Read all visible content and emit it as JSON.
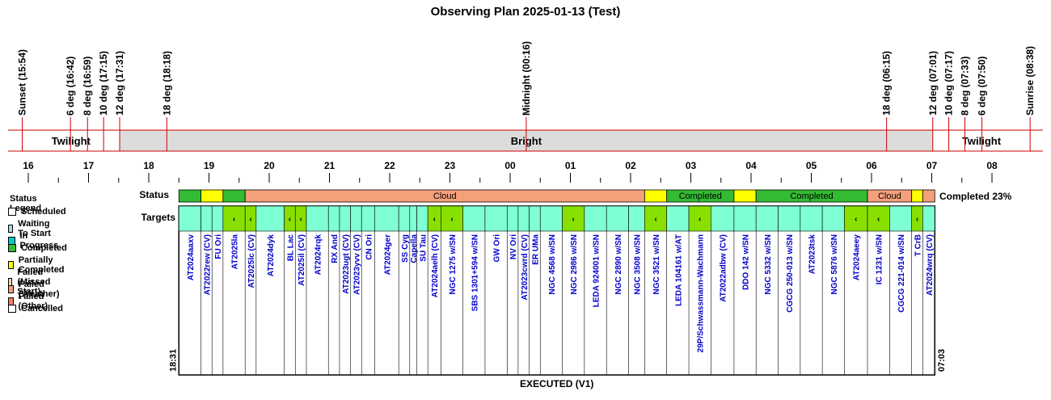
{
  "title": "Observing Plan 2025-01-13 (Test)",
  "twilight_markers": [
    {
      "label": "Sunset (15:54)",
      "hour": 15.9
    },
    {
      "label": "6 deg (16:42)",
      "hour": 16.7
    },
    {
      "label": "8 deg (16:59)",
      "hour": 16.983
    },
    {
      "label": "10 deg (17:15)",
      "hour": 17.25
    },
    {
      "label": "12 deg (17:31)",
      "hour": 17.517
    },
    {
      "label": "18 deg (18:18)",
      "hour": 18.3
    },
    {
      "label": "Midnight (00:16)",
      "hour": 24.267
    },
    {
      "label": "18 deg (06:15)",
      "hour": 30.25
    },
    {
      "label": "12 deg (07:01)",
      "hour": 31.017
    },
    {
      "label": "10 deg (07:17)",
      "hour": 31.283
    },
    {
      "label": "8 deg (07:33)",
      "hour": 31.55
    },
    {
      "label": "6 deg (07:50)",
      "hour": 31.833
    },
    {
      "label": "Sunrise (08:38)",
      "hour": 32.633
    }
  ],
  "sky_bands": [
    {
      "label": "Twilight",
      "start": 15.9,
      "end": 17.517,
      "color": "#ffffff"
    },
    {
      "label": "Bright",
      "start": 17.517,
      "end": 31.017,
      "color": "#dcdcdc"
    },
    {
      "label": "Twilight",
      "start": 31.017,
      "end": 32.633,
      "color": "#ffffff"
    }
  ],
  "hour_ticks": [
    "16",
    "17",
    "18",
    "19",
    "20",
    "21",
    "22",
    "23",
    "00",
    "01",
    "02",
    "03",
    "04",
    "05",
    "06",
    "07",
    "08"
  ],
  "status_label": "Status",
  "targets_label": "Targets",
  "status_segments": [
    {
      "label": "",
      "start": 18.5,
      "end": 18.867,
      "color": "#33bb33"
    },
    {
      "label": "",
      "start": 18.867,
      "end": 19.233,
      "color": "#ffff00"
    },
    {
      "label": "",
      "start": 19.233,
      "end": 19.6,
      "color": "#33bb33"
    },
    {
      "label": "Cloud",
      "start": 19.6,
      "end": 26.233,
      "color": "#f4a07a"
    },
    {
      "label": "",
      "start": 26.233,
      "end": 26.6,
      "color": "#ffff00"
    },
    {
      "label": "Completed",
      "start": 26.6,
      "end": 27.717,
      "color": "#33bb33"
    },
    {
      "label": "",
      "start": 27.717,
      "end": 28.083,
      "color": "#ffff00"
    },
    {
      "label": "Completed",
      "start": 28.083,
      "end": 29.933,
      "color": "#33bb33"
    },
    {
      "label": "Cloud",
      "start": 29.933,
      "end": 30.667,
      "color": "#f4a07a"
    },
    {
      "label": "",
      "start": 30.667,
      "end": 30.85,
      "color": "#ffff00"
    },
    {
      "label": "",
      "start": 30.85,
      "end": 31.05,
      "color": "#f4a07a"
    }
  ],
  "completed_summary": "Completed 23%",
  "targets": [
    {
      "name": "AT2024aaxv",
      "start": 18.5,
      "end": 18.867,
      "mark": ""
    },
    {
      "name": "AT2022rew (CV)",
      "start": 18.867,
      "end": 19.05,
      "mark": ""
    },
    {
      "name": "FU Ori",
      "start": 19.05,
      "end": 19.233,
      "mark": ""
    },
    {
      "name": "AT2025la",
      "start": 19.233,
      "end": 19.6,
      "mark": "‹"
    },
    {
      "name": "AT2025lc (CV)",
      "start": 19.6,
      "end": 19.783,
      "mark": "‹"
    },
    {
      "name": "AT2024dyk",
      "start": 19.783,
      "end": 20.25,
      "mark": ""
    },
    {
      "name": "BL Lac",
      "start": 20.25,
      "end": 20.433,
      "mark": "‹"
    },
    {
      "name": "AT2025il (CV)",
      "start": 20.433,
      "end": 20.617,
      "mark": "‹"
    },
    {
      "name": "AT2024rqk",
      "start": 20.617,
      "end": 20.983,
      "mark": ""
    },
    {
      "name": "RX And",
      "start": 20.983,
      "end": 21.167,
      "mark": ""
    },
    {
      "name": "AT2023ugt (CV)",
      "start": 21.167,
      "end": 21.35,
      "mark": ""
    },
    {
      "name": "AT2023yvv (CV)",
      "start": 21.35,
      "end": 21.533,
      "mark": ""
    },
    {
      "name": "CN Ori",
      "start": 21.533,
      "end": 21.75,
      "mark": ""
    },
    {
      "name": "AT2024ger",
      "start": 21.75,
      "end": 22.15,
      "mark": ""
    },
    {
      "name": "SS Cyg",
      "start": 22.15,
      "end": 22.333,
      "mark": ""
    },
    {
      "name": "Capella",
      "start": 22.333,
      "end": 22.45,
      "mark": ""
    },
    {
      "name": "SU Tau",
      "start": 22.45,
      "end": 22.633,
      "mark": ""
    },
    {
      "name": "AT2024aelh (CV)",
      "start": 22.633,
      "end": 22.85,
      "mark": "‹"
    },
    {
      "name": "NGC 1275 w/SN",
      "start": 22.85,
      "end": 23.217,
      "mark": "‹"
    },
    {
      "name": "SBS 1301+594 w/SN",
      "start": 23.217,
      "end": 23.583,
      "mark": ""
    },
    {
      "name": "GW Ori",
      "start": 23.583,
      "end": 23.95,
      "mark": ""
    },
    {
      "name": "NV Ori",
      "start": 23.95,
      "end": 24.133,
      "mark": ""
    },
    {
      "name": "AT2023cwrd (CV)",
      "start": 24.133,
      "end": 24.317,
      "mark": ""
    },
    {
      "name": "ER UMa",
      "start": 24.317,
      "end": 24.5,
      "mark": ""
    },
    {
      "name": "NGC 4568 w/SN",
      "start": 24.5,
      "end": 24.867,
      "mark": ""
    },
    {
      "name": "NGC 2986 w/SN",
      "start": 24.867,
      "end": 25.233,
      "mark": "‹"
    },
    {
      "name": "LEDA 924001 w/SN",
      "start": 25.233,
      "end": 25.6,
      "mark": ""
    },
    {
      "name": "NGC 2890 w/SN",
      "start": 25.6,
      "end": 25.967,
      "mark": ""
    },
    {
      "name": "NGC 3508 w/SN",
      "start": 25.967,
      "end": 26.233,
      "mark": ""
    },
    {
      "name": "NGC 3521 w/SN",
      "start": 26.233,
      "end": 26.6,
      "mark": "‹"
    },
    {
      "name": "LEDA 104161 w/AT",
      "start": 26.6,
      "end": 26.967,
      "mark": ""
    },
    {
      "name": "29P/Schwassmann-Wachmann",
      "start": 26.967,
      "end": 27.333,
      "mark": "‹"
    },
    {
      "name": "AT2022adbw (CV)",
      "start": 27.333,
      "end": 27.717,
      "mark": ""
    },
    {
      "name": "DDO 142 w/SN",
      "start": 27.717,
      "end": 28.083,
      "mark": ""
    },
    {
      "name": "NGC 5332 w/SN",
      "start": 28.083,
      "end": 28.45,
      "mark": ""
    },
    {
      "name": "CGCG 250-013 w/SN",
      "start": 28.45,
      "end": 28.817,
      "mark": ""
    },
    {
      "name": "AT2023tsk",
      "start": 28.817,
      "end": 29.183,
      "mark": ""
    },
    {
      "name": "NGC 5876 w/SN",
      "start": 29.183,
      "end": 29.55,
      "mark": ""
    },
    {
      "name": "AT2024aeey",
      "start": 29.55,
      "end": 29.933,
      "mark": "‹"
    },
    {
      "name": "IC 1231 w/SN",
      "start": 29.933,
      "end": 30.3,
      "mark": "‹"
    },
    {
      "name": "CGCG 221-014 w/SN",
      "start": 30.3,
      "end": 30.667,
      "mark": ""
    },
    {
      "name": "T CrB",
      "start": 30.667,
      "end": 30.85,
      "mark": "‹"
    },
    {
      "name": "AT2024wrq (CV)",
      "start": 30.85,
      "end": 31.05,
      "mark": ""
    }
  ],
  "left_time": "18:31",
  "right_time": "07:03",
  "footer": "EXECUTED (V1)",
  "legend_title": "Status Legend",
  "legend": [
    {
      "label": "Scheduled",
      "color": "#ffffff"
    },
    {
      "label": "Waiting To Start",
      "color": "#a8d8e8"
    },
    {
      "label": "In Progress",
      "color": "#00cccc"
    },
    {
      "label": "Completed",
      "color": "#33bb33"
    },
    {
      "label": "Partially Completed",
      "color": "#ffff00"
    },
    {
      "label": "Failed (Missed Start)",
      "color": "#ffd8a8"
    },
    {
      "label": "Failed (Weather)",
      "color": "#f4a07a"
    },
    {
      "label": "Failed (Other)",
      "color": "#f08060"
    },
    {
      "label": "Cancelled",
      "color": "#ffffff"
    }
  ],
  "colors": {
    "target_default": "#7fffd4",
    "target_marked": "#88e000",
    "target_text": "#0000cc",
    "grid_red": "#cc0000"
  }
}
